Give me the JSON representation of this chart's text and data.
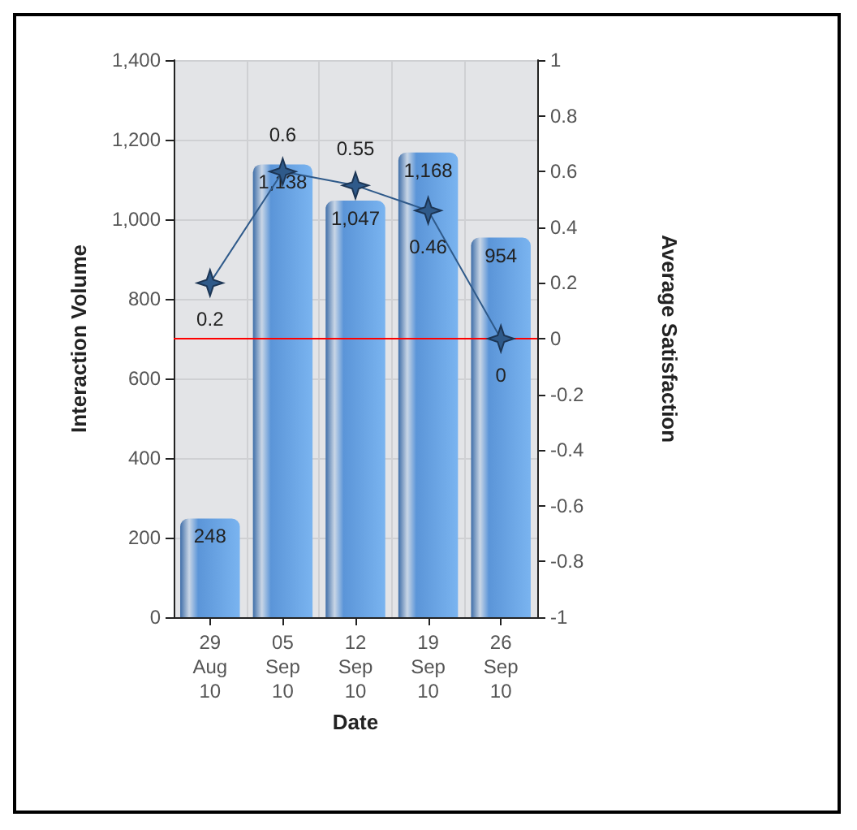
{
  "chart_data": {
    "type": "bar",
    "xlabel": "Date",
    "ylabel": "Interaction Volume",
    "y2label": "Average Satisfaction",
    "categories": [
      "29 Aug 10",
      "05 Sep 10",
      "12 Sep 10",
      "19 Sep 10",
      "26 Sep 10"
    ],
    "series": [
      {
        "color": "#5b95d8",
        "values": [
          248,
          1138,
          1047,
          1168,
          954
        ],
        "value_labels": [
          "248",
          "1,138",
          "1,047",
          "1,168",
          "954"
        ]
      },
      {
        "type": "line",
        "axis": "y2",
        "color": "#2f5a8a",
        "values": [
          0.2,
          0.6,
          0.55,
          0.46,
          0
        ],
        "value_labels": [
          "0.2",
          "0.6",
          "0.55",
          "0.46",
          "0"
        ]
      }
    ],
    "ylim": [
      0,
      1400
    ],
    "yticks": [
      0,
      200,
      400,
      600,
      800,
      {
        "value": 1000,
        "label": "1,000"
      },
      {
        "value": 1200,
        "label": "1,200"
      },
      {
        "value": 1400,
        "label": "1,400"
      }
    ],
    "y2lim": [
      -1,
      1
    ],
    "y2ticks": [
      -1,
      -0.8,
      -0.6,
      -0.4,
      -0.2,
      0,
      0.2,
      0.4,
      0.6,
      0.8,
      1
    ],
    "ref_lines": [
      {
        "axis": "y2",
        "value": 0,
        "color": "#ff0000"
      }
    ],
    "grid": true,
    "marker": "star"
  }
}
